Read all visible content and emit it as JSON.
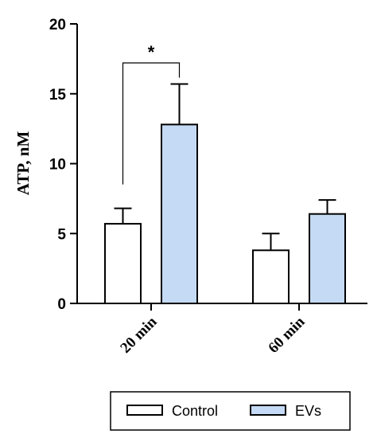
{
  "chart_data": {
    "type": "bar",
    "categories": [
      "20 min",
      "60 min"
    ],
    "series": [
      {
        "name": "Control",
        "values": [
          5.7,
          3.8
        ],
        "errors": [
          1.1,
          1.2
        ],
        "color": "#ffffff"
      },
      {
        "name": "EVs",
        "values": [
          12.8,
          6.4
        ],
        "errors": [
          2.9,
          1.0
        ],
        "color": "#c5daf4"
      }
    ],
    "ylabel": "ATP, nM",
    "xlabel": "",
    "ylim": [
      0,
      20
    ],
    "yticks": [
      "0",
      "5",
      "10",
      "15",
      "20"
    ],
    "grid": false,
    "legend": "bottom",
    "annotations": [
      {
        "text": "*",
        "category": "20 min",
        "between": [
          "Control",
          "EVs"
        ]
      }
    ]
  }
}
